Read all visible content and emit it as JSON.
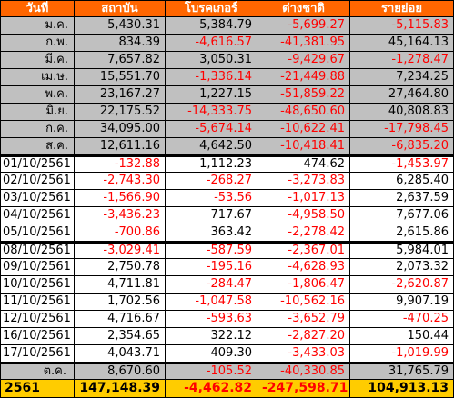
{
  "colors": {
    "header_bg": "#ff6600",
    "month_bg": "#c0c0c0",
    "total_bg": "#ffcc00",
    "negative": "#ff0000"
  },
  "header": [
    "วันที่",
    "สถาบัน",
    "โบรคเกอร์",
    "ต่างชาติ",
    "รายย่อย"
  ],
  "months": [
    [
      "ม.ค.",
      "5,430.31",
      "5,384.79",
      "-5,699.27",
      "-5,115.83"
    ],
    [
      "ก.พ.",
      "834.39",
      "-4,616.57",
      "-41,381.95",
      "45,164.13"
    ],
    [
      "มี.ค.",
      "7,657.82",
      "3,050.31",
      "-9,429.67",
      "-1,278.47"
    ],
    [
      "เม.ษ.",
      "15,551.70",
      "-1,336.14",
      "-21,449.88",
      "7,234.25"
    ],
    [
      "พ.ค.",
      "23,167.27",
      "1,227.15",
      "-51,859.22",
      "27,464.80"
    ],
    [
      "มิ.ย.",
      "22,175.52",
      "-14,333.75",
      "-48,650.60",
      "40,808.83"
    ],
    [
      "ก.ค.",
      "34,095.00",
      "-5,674.14",
      "-10,622.41",
      "-17,798.45"
    ],
    [
      "ส.ค.",
      "12,611.16",
      "4,642.50",
      "-10,418.41",
      "-6,835.20"
    ]
  ],
  "daily": [
    [
      "01/10/2561",
      "-132.88",
      "1,112.23",
      "474.62",
      "-1,453.97"
    ],
    [
      "02/10/2561",
      "-2,743.30",
      "-268.27",
      "-3,273.83",
      "6,285.40"
    ],
    [
      "03/10/2561",
      "-1,566.90",
      "-53.56",
      "-1,017.13",
      "2,637.59"
    ],
    [
      "04/10/2561",
      "-3,436.23",
      "717.67",
      "-4,958.50",
      "7,677.06"
    ],
    [
      "05/10/2561",
      "-700.86",
      "363.42",
      "-2,278.42",
      "2,615.86"
    ],
    [
      "08/10/2561",
      "-3,029.41",
      "-587.59",
      "-2,367.01",
      "5,984.01"
    ],
    [
      "09/10/2561",
      "2,750.78",
      "-195.16",
      "-4,628.93",
      "2,073.32"
    ],
    [
      "10/10/2561",
      "4,711.81",
      "-284.47",
      "-1,806.47",
      "-2,620.87"
    ],
    [
      "11/10/2561",
      "1,702.56",
      "-1,047.58",
      "-10,562.16",
      "9,907.19"
    ],
    [
      "12/10/2561",
      "4,716.67",
      "-593.63",
      "-3,652.79",
      "-470.25"
    ],
    [
      "16/10/2561",
      "2,354.65",
      "322.12",
      "-2,827.20",
      "150.44"
    ],
    [
      "17/10/2561",
      "4,043.71",
      "409.30",
      "-3,433.03",
      "-1,019.99"
    ]
  ],
  "summary": [
    "ต.ค.",
    "8,670.60",
    "-105.52",
    "-40,330.85",
    "31,765.79"
  ],
  "total": [
    "2561",
    "147,148.39",
    "-4,462.82",
    "-247,598.71",
    "104,913.13"
  ]
}
